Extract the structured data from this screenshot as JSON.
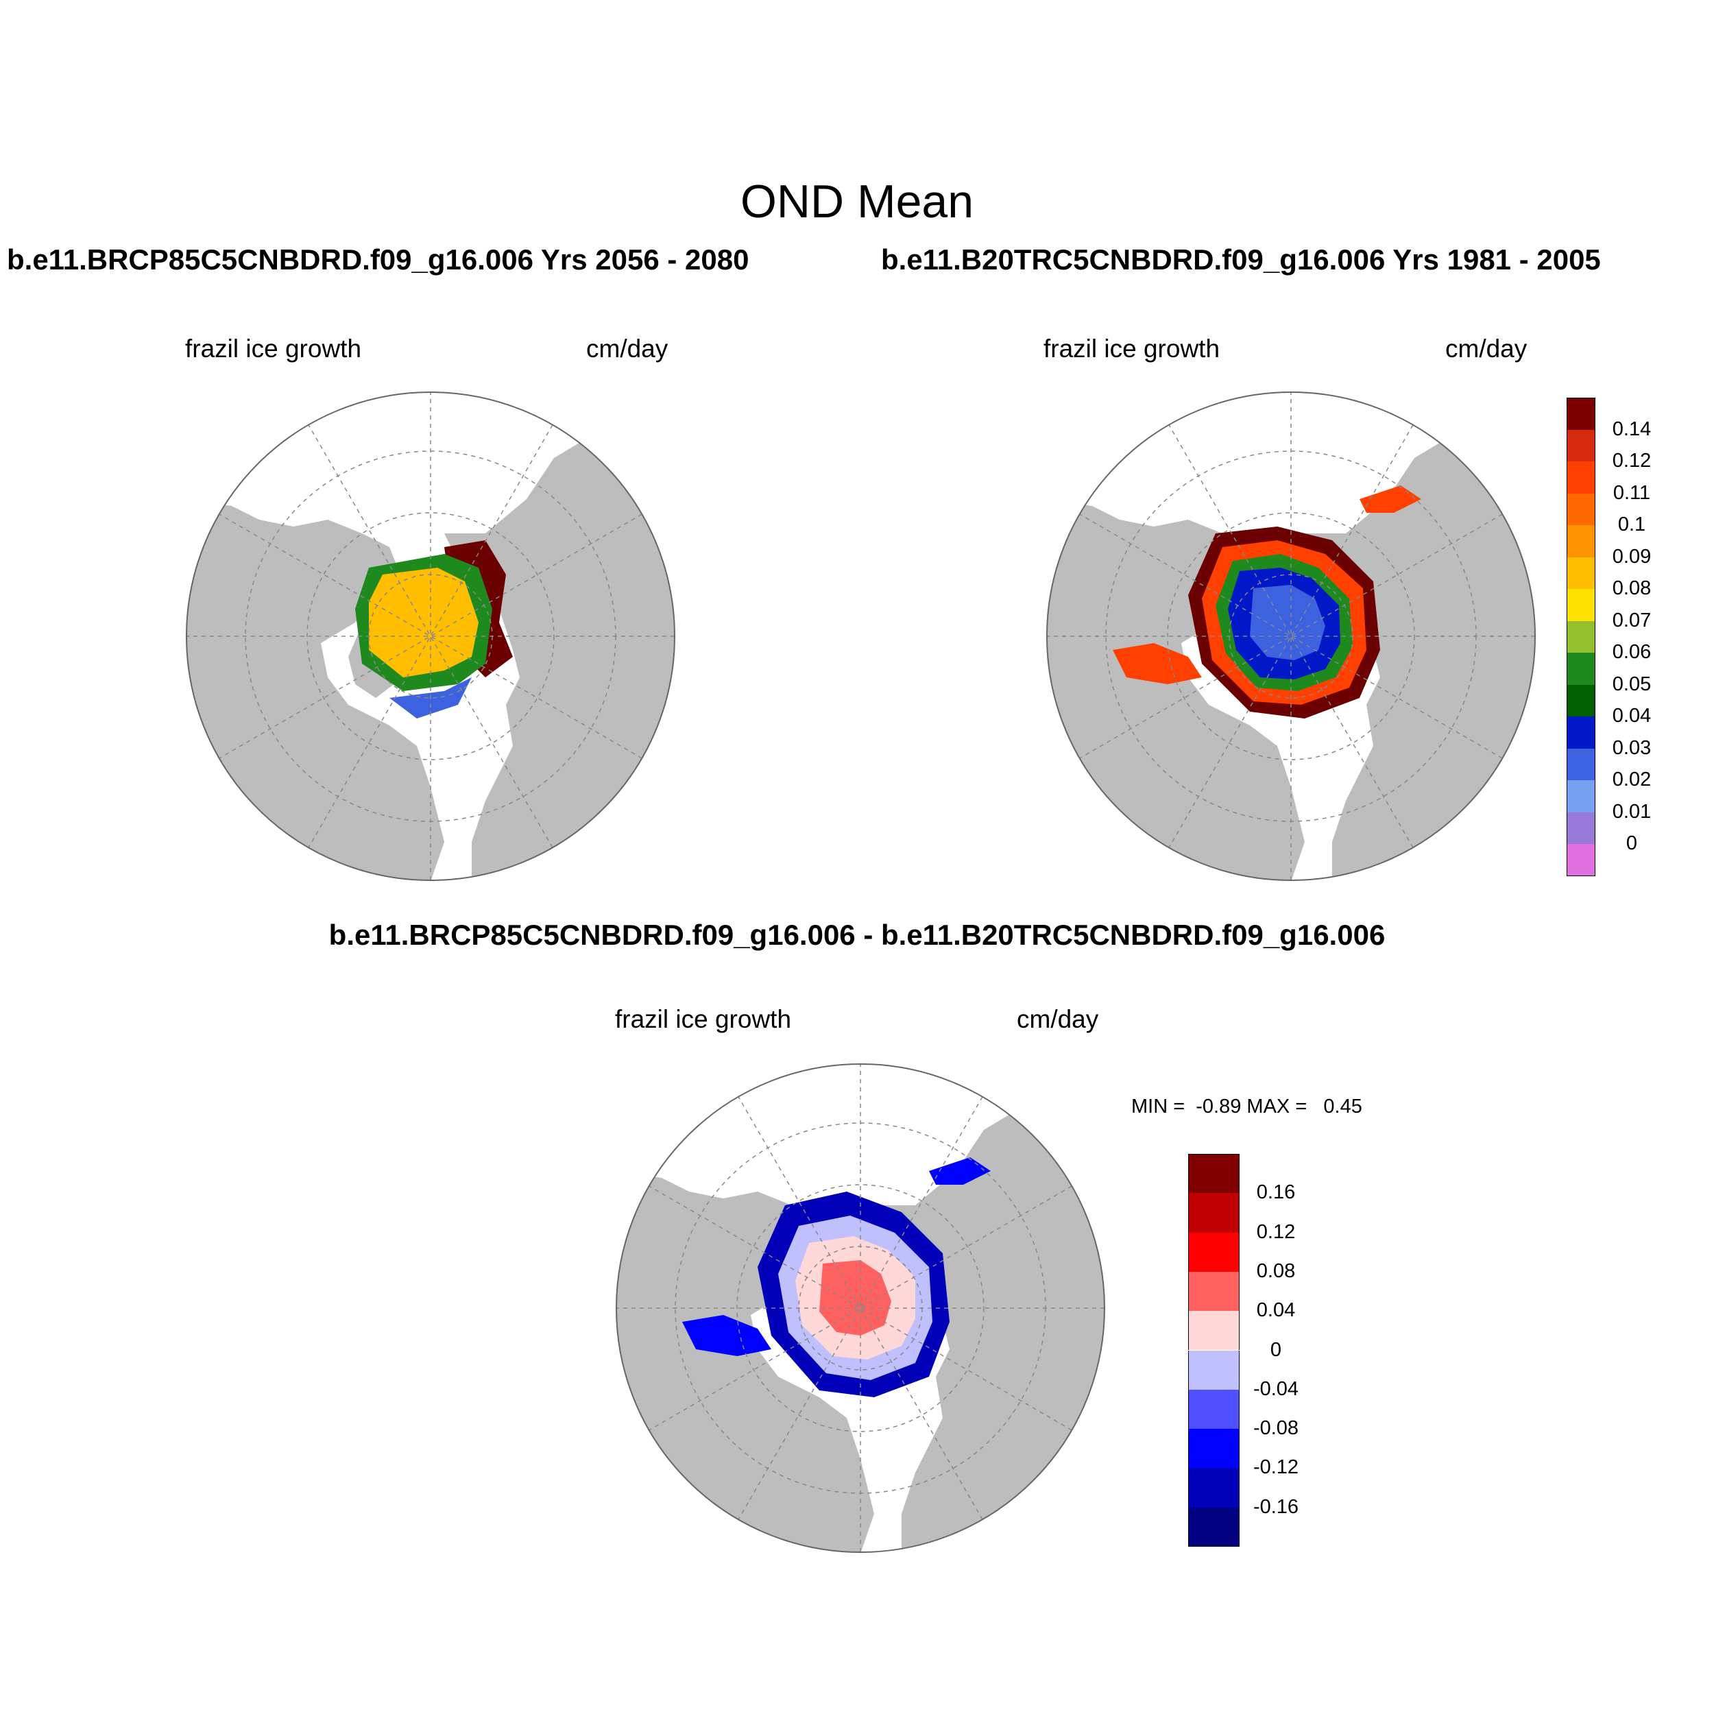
{
  "header": {
    "title": "OND Mean",
    "case_left": "b.e11.BRCP85C5CNBDRD.f09_g16.006  Yrs 2056 - 2080",
    "case_right": "b.e11.B20TRC5CNBDRD.f09_g16.006  Yrs 1981 - 2005",
    "diff_title": "b.e11.BRCP85C5CNBDRD.f09_g16.006 - b.e11.B20TRC5CNBDRD.f09_g16.006"
  },
  "panels": {
    "top_left": {
      "variable": "frazil ice growth",
      "units": "cm/day"
    },
    "top_right": {
      "variable": "frazil ice growth",
      "units": "cm/day"
    },
    "bottom": {
      "variable": "frazil ice growth",
      "units": "cm/day",
      "minmax": "MIN =  -0.89 MAX =   0.45"
    }
  },
  "colorbar_mean": {
    "labels": [
      "0.14",
      "0.12",
      "0.11",
      "0.1",
      "0.09",
      "0.08",
      "0.07",
      "0.06",
      "0.05",
      "0.04",
      "0.03",
      "0.02",
      "0.01",
      "0"
    ],
    "colors": [
      "#7a0000",
      "#d62a0e",
      "#ff4000",
      "#ff6a00",
      "#ff9200",
      "#ffbf00",
      "#ffe100",
      "#93bf2e",
      "#1e8a1e",
      "#006000",
      "#0018c8",
      "#3c62e0",
      "#78a0f0",
      "#9878d8",
      "#e070e0"
    ]
  },
  "colorbar_diff": {
    "labels": [
      "0.16",
      "0.12",
      "0.08",
      "0.04",
      "0",
      "-0.04",
      "-0.08",
      "-0.12",
      "-0.16"
    ],
    "colors": [
      "#800000",
      "#c00000",
      "#ff0000",
      "#ff6060",
      "#ffd8d8",
      "#c0c0ff",
      "#5050ff",
      "#0000ff",
      "#0000b8",
      "#000080"
    ]
  },
  "map_colors": {
    "ocean": "#ffffff",
    "land": "#bdbdbd",
    "grid": "#888888"
  }
}
